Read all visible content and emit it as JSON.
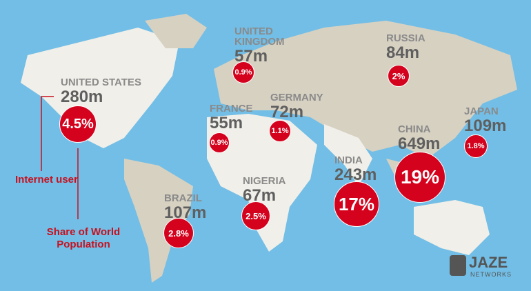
{
  "countries": [
    {
      "name": "UNITED STATES",
      "users": "280m",
      "share": "4.5%"
    },
    {
      "name": "UNITED KINGDOM",
      "users": "57m",
      "share": "0.9%"
    },
    {
      "name": "RUSSIA",
      "users": "84m",
      "share": "2%"
    },
    {
      "name": "GERMANY",
      "users": "72m",
      "share": "1.1%"
    },
    {
      "name": "FRANCE",
      "users": "55m",
      "share": "0.9%"
    },
    {
      "name": "JAPAN",
      "users": "109m",
      "share": "1.8%"
    },
    {
      "name": "CHINA",
      "users": "649m",
      "share": "19%"
    },
    {
      "name": "INDIA",
      "users": "243m",
      "share": "17%"
    },
    {
      "name": "NIGERIA",
      "users": "67m",
      "share": "2.5%"
    },
    {
      "name": "BRAZIL",
      "users": "107m",
      "share": "2.8%"
    }
  ],
  "legend": {
    "users": "Internet user",
    "share": "Share of World Population"
  },
  "logo": {
    "brand": "JAZE",
    "sub": "NETWORKS"
  }
}
